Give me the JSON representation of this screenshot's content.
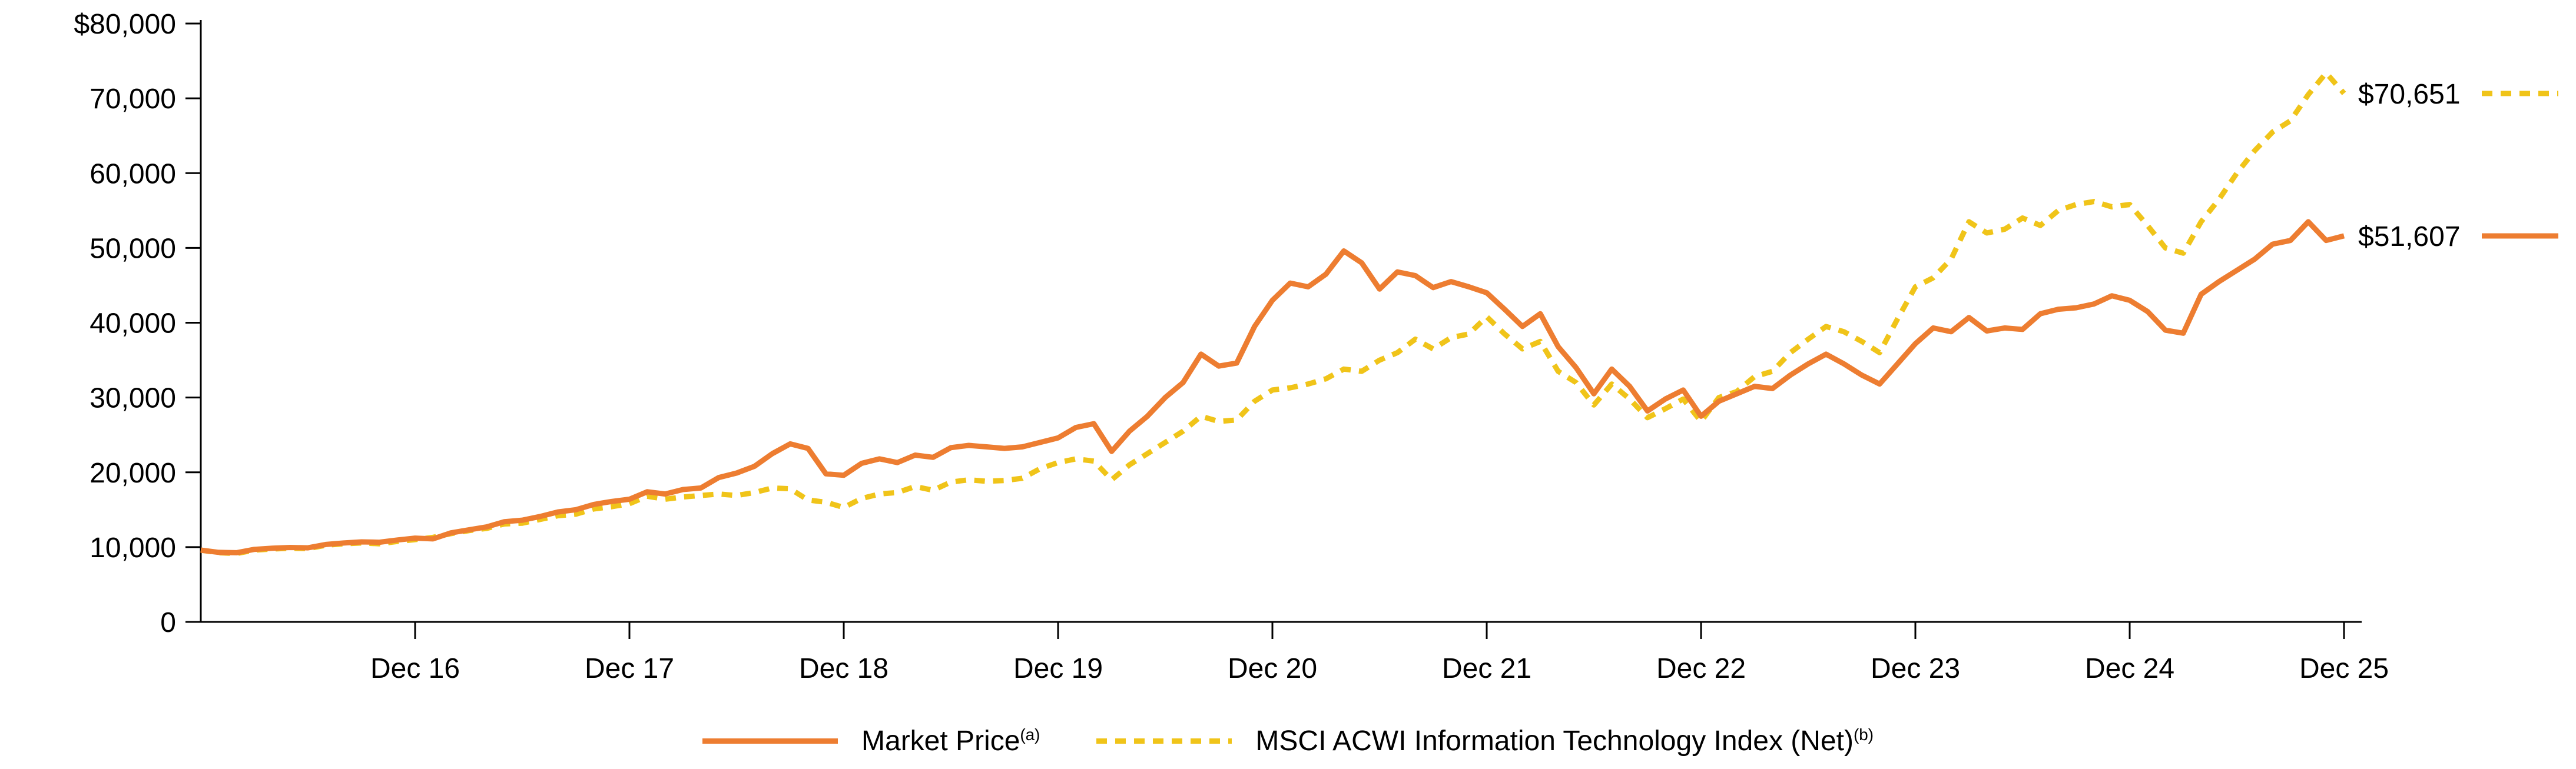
{
  "chart_data": {
    "type": "line",
    "title": "",
    "grid": false,
    "legend_position": "bottom",
    "axis_color": "#000000",
    "ylim": [
      0,
      80000
    ],
    "y_ticks": [
      0,
      10000,
      20000,
      30000,
      40000,
      50000,
      60000,
      70000,
      80000
    ],
    "y_tick_labels": [
      "0",
      "10,000",
      "20,000",
      "30,000",
      "40,000",
      "50,000",
      "60,000",
      "70,000",
      "$80,000"
    ],
    "x_months_total": 120,
    "x_tick_month_indices": [
      12,
      24,
      36,
      48,
      60,
      72,
      84,
      96,
      108,
      120
    ],
    "x_tick_labels": [
      "Dec 16",
      "Dec 17",
      "Dec 18",
      "Dec 19",
      "Dec 20",
      "Dec 21",
      "Dec 22",
      "Dec 23",
      "Dec 24",
      "Dec 25"
    ],
    "series": [
      {
        "id": "index",
        "name": "MSCI ACWI Information Technology Index (Net)",
        "superscript": "(b)",
        "color": "#F0C419",
        "style": "dashed",
        "end_label": "$70,651",
        "end_value": 70651,
        "values": [
          9600,
          9250,
          9150,
          9600,
          9750,
          9850,
          9800,
          10250,
          10450,
          10550,
          10450,
          10750,
          11000,
          11300,
          11800,
          12200,
          12500,
          13100,
          13200,
          13700,
          14200,
          14400,
          15100,
          15400,
          15800,
          16800,
          16400,
          16700,
          16900,
          17100,
          16900,
          17300,
          17900,
          17800,
          16300,
          16000,
          15300,
          16500,
          17100,
          17300,
          18100,
          17600,
          18700,
          19000,
          18800,
          18900,
          19200,
          20500,
          21300,
          21800,
          21500,
          19000,
          21000,
          22500,
          24000,
          25500,
          27500,
          26800,
          27000,
          29500,
          31000,
          31300,
          31800,
          32500,
          33800,
          33500,
          35000,
          36000,
          37800,
          36500,
          38000,
          38500,
          40800,
          38500,
          36500,
          37500,
          33500,
          32000,
          29000,
          31800,
          29800,
          27300,
          28500,
          29800,
          26800,
          30000,
          30800,
          32800,
          33500,
          36000,
          37800,
          39500,
          38800,
          37500,
          36000,
          40500,
          44800,
          46000,
          48500,
          53500,
          52000,
          52500,
          54000,
          53000,
          55000,
          55800,
          56200,
          55500,
          55800,
          53000,
          50000,
          49300,
          53500,
          56500,
          60000,
          63000,
          65500,
          67000,
          70500,
          73400,
          70651
        ]
      },
      {
        "id": "market-price",
        "name": "Market Price",
        "superscript": "(a)",
        "color": "#ED7D31",
        "style": "solid",
        "end_label": "$51,607",
        "end_value": 51607,
        "values": [
          9600,
          9300,
          9250,
          9700,
          9850,
          9950,
          9900,
          10350,
          10550,
          10700,
          10650,
          10950,
          11200,
          11100,
          11900,
          12300,
          12700,
          13400,
          13600,
          14100,
          14700,
          15000,
          15700,
          16100,
          16400,
          17400,
          17100,
          17700,
          17900,
          19300,
          19900,
          20800,
          22500,
          23800,
          23200,
          19800,
          19600,
          21200,
          21800,
          21300,
          22300,
          22000,
          23300,
          23600,
          23400,
          23200,
          23400,
          24000,
          24600,
          26000,
          26500,
          22800,
          25500,
          27500,
          30000,
          32000,
          35800,
          34200,
          34600,
          39500,
          43000,
          45300,
          44800,
          46500,
          49600,
          48000,
          44500,
          46800,
          46300,
          44700,
          45500,
          44800,
          44000,
          41800,
          39500,
          41200,
          36800,
          34000,
          30500,
          33800,
          31500,
          28200,
          29800,
          31000,
          27500,
          29500,
          30500,
          31500,
          31200,
          33000,
          34500,
          35800,
          34500,
          33000,
          31800,
          34500,
          37200,
          39300,
          38800,
          40700,
          38900,
          39300,
          39100,
          41200,
          41800,
          42000,
          42500,
          43600,
          43000,
          41500,
          39000,
          38600,
          43800,
          45500,
          47000,
          48500,
          50500,
          51000,
          53500,
          51000,
          51607
        ]
      }
    ]
  },
  "legend": {
    "items": [
      {
        "label": "Market Price",
        "superscript": "(a)"
      },
      {
        "label": "MSCI ACWI Information Technology Index (Net)",
        "superscript": "(b)"
      }
    ]
  }
}
